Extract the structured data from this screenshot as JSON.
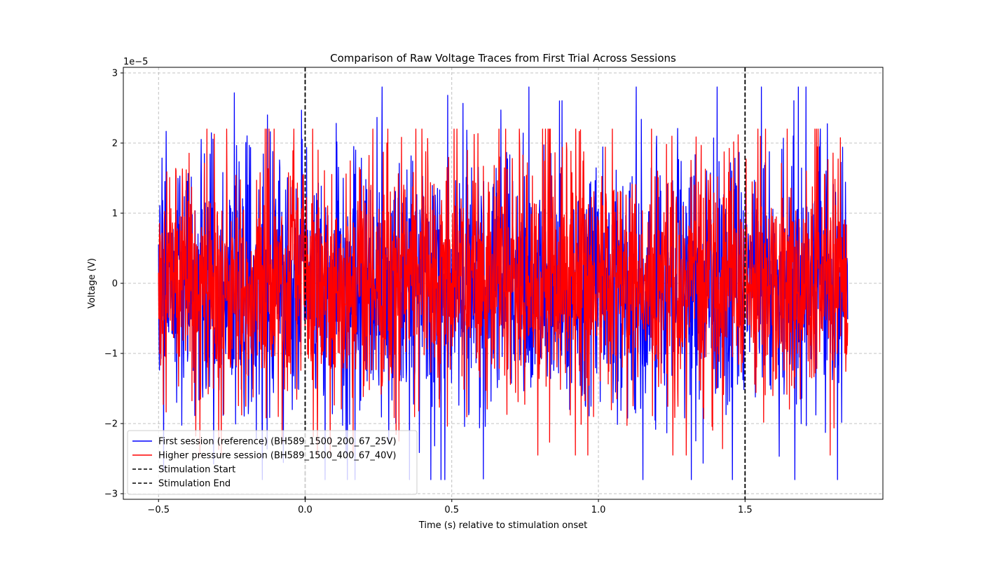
{
  "chart_data": {
    "type": "line",
    "title": "Comparison of Raw Voltage Traces from First Trial Across Sessions",
    "xlabel": "Time (s) relative to stimulation onset",
    "ylabel": "Voltage (V)",
    "y_offset_label": "1e−5",
    "xlim": [
      -0.62,
      1.97
    ],
    "ylim": [
      -3.08,
      3.08
    ],
    "y_scale_exponent": -5,
    "x_ticks": [
      -0.5,
      0.0,
      0.5,
      1.0,
      1.5
    ],
    "x_tick_labels": [
      "−0.5",
      "0.0",
      "0.5",
      "1.0",
      "1.5"
    ],
    "y_ticks": [
      -3,
      -2,
      -1,
      0,
      1,
      2,
      3
    ],
    "y_tick_labels": [
      "−3",
      "−2",
      "−1",
      "0",
      "1",
      "2",
      "3"
    ],
    "grid": true,
    "legend_position": "lower-left",
    "colors": {
      "session1": "#0000ff",
      "session2": "#ff0000",
      "stim": "#000000"
    },
    "series": [
      {
        "name": "First session (reference) (BH589_1500_200_67_25V)",
        "color": "#0000ff",
        "x_range": [
          -0.5,
          1.85
        ],
        "y_range_approx": [
          -2.8e-05,
          2.8e-05
        ],
        "typical_amplitude": 1.4e-05
      },
      {
        "name": "Higher pressure session (BH589_1500_400_67_40V)",
        "color": "#ff0000",
        "x_range": [
          -0.5,
          1.85
        ],
        "y_range_approx": [
          -2.45e-05,
          2.2e-05
        ],
        "typical_amplitude": 1.3e-05
      }
    ],
    "vlines": [
      {
        "name": "Stimulation Start",
        "x": 0.0,
        "color": "#000000",
        "style": "dashed"
      },
      {
        "name": "Stimulation End",
        "x": 1.5,
        "color": "#000000",
        "style": "dashed"
      }
    ]
  }
}
